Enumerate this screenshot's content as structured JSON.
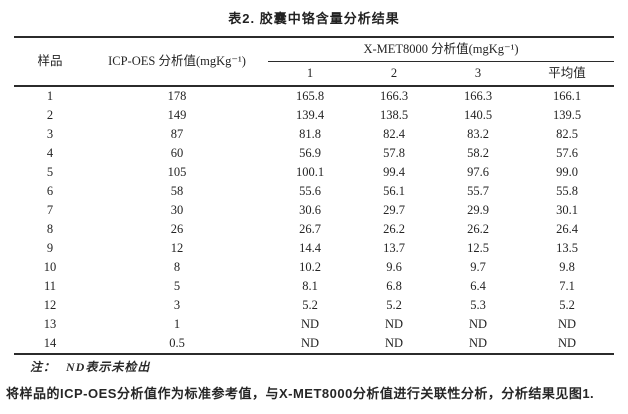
{
  "title": "表2. 胶囊中铬含量分析结果",
  "table": {
    "headers": {
      "sample": "样品",
      "icp": "ICP-OES 分析值(mgKg⁻¹)",
      "xmet_group": "X-MET8000 分析值(mgKg⁻¹)",
      "sub_1": "1",
      "sub_2": "2",
      "sub_3": "3",
      "sub_avg": "平均值"
    },
    "rows": [
      {
        "sample": "1",
        "icp": "178",
        "v1": "165.8",
        "v2": "166.3",
        "v3": "166.3",
        "avg": "166.1"
      },
      {
        "sample": "2",
        "icp": "149",
        "v1": "139.4",
        "v2": "138.5",
        "v3": "140.5",
        "avg": "139.5"
      },
      {
        "sample": "3",
        "icp": "87",
        "v1": "81.8",
        "v2": "82.4",
        "v3": "83.2",
        "avg": "82.5"
      },
      {
        "sample": "4",
        "icp": "60",
        "v1": "56.9",
        "v2": "57.8",
        "v3": "58.2",
        "avg": "57.6"
      },
      {
        "sample": "5",
        "icp": "105",
        "v1": "100.1",
        "v2": "99.4",
        "v3": "97.6",
        "avg": "99.0"
      },
      {
        "sample": "6",
        "icp": "58",
        "v1": "55.6",
        "v2": "56.1",
        "v3": "55.7",
        "avg": "55.8"
      },
      {
        "sample": "7",
        "icp": "30",
        "v1": "30.6",
        "v2": "29.7",
        "v3": "29.9",
        "avg": "30.1"
      },
      {
        "sample": "8",
        "icp": "26",
        "v1": "26.7",
        "v2": "26.2",
        "v3": "26.2",
        "avg": "26.4"
      },
      {
        "sample": "9",
        "icp": "12",
        "v1": "14.4",
        "v2": "13.7",
        "v3": "12.5",
        "avg": "13.5"
      },
      {
        "sample": "10",
        "icp": "8",
        "v1": "10.2",
        "v2": "9.6",
        "v3": "9.7",
        "avg": "9.8"
      },
      {
        "sample": "11",
        "icp": "5",
        "v1": "8.1",
        "v2": "6.8",
        "v3": "6.4",
        "avg": "7.1"
      },
      {
        "sample": "12",
        "icp": "3",
        "v1": "5.2",
        "v2": "5.2",
        "v3": "5.3",
        "avg": "5.2"
      },
      {
        "sample": "13",
        "icp": "1",
        "v1": "ND",
        "v2": "ND",
        "v3": "ND",
        "avg": "ND"
      },
      {
        "sample": "14",
        "icp": "0.5",
        "v1": "ND",
        "v2": "ND",
        "v3": "ND",
        "avg": "ND"
      }
    ]
  },
  "note": {
    "label": "注：",
    "text": "ND表示未检出"
  },
  "paragraph": "将样品的ICP-OES分析值作为标准参考值，与X-MET8000分析值进行关联性分析，分析结果见图1."
}
